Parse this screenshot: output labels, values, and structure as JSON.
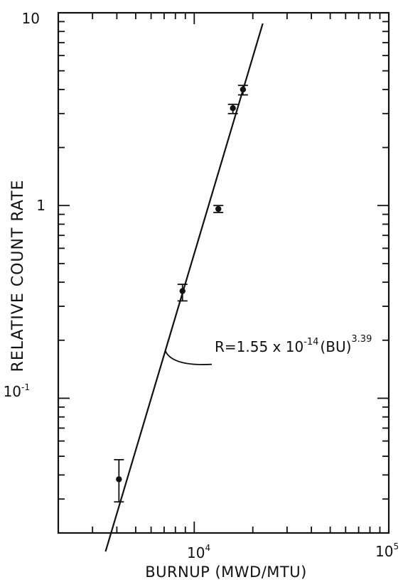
{
  "chart_data": {
    "type": "scatter",
    "title": "",
    "xlabel": "BURNUP (MWD/MTU)",
    "ylabel": "RELATIVE COUNT RATE",
    "x_scale": "log",
    "y_scale": "log",
    "xlim": [
      2000,
      100000
    ],
    "ylim": [
      0.02,
      10
    ],
    "grid": false,
    "x_ticks": [
      {
        "value": 10000,
        "base": "10",
        "exp": "4"
      },
      {
        "value": 100000,
        "base": "10",
        "exp": "5"
      }
    ],
    "y_ticks": [
      {
        "value": 10,
        "label": "10"
      },
      {
        "value": 1,
        "label": "1"
      },
      {
        "value": 0.1,
        "base": "10",
        "exp": "-1"
      }
    ],
    "series": [
      {
        "points": [
          {
            "x": 4100,
            "y": 0.038,
            "y_low": 0.029,
            "y_high": 0.048
          },
          {
            "x": 8700,
            "y": 0.36,
            "y_low": 0.32,
            "y_high": 0.39
          },
          {
            "x": 13300,
            "y": 0.96,
            "y_low": 0.92,
            "y_high": 1.0
          },
          {
            "x": 15800,
            "y": 3.2,
            "y_low": 3.0,
            "y_high": 3.35
          },
          {
            "x": 17800,
            "y": 4.0,
            "y_low": 3.75,
            "y_high": 4.2
          }
        ]
      }
    ],
    "fit_line": {
      "x_start": 3500,
      "x_end": 22500,
      "a": 1.55e-14,
      "b": 3.39
    },
    "annotation": {
      "prefix": "R=1.55 x 10",
      "exp1": "-14",
      "middle": "(BU)",
      "exp2": "3.39",
      "pointer_x": 7100
    }
  }
}
